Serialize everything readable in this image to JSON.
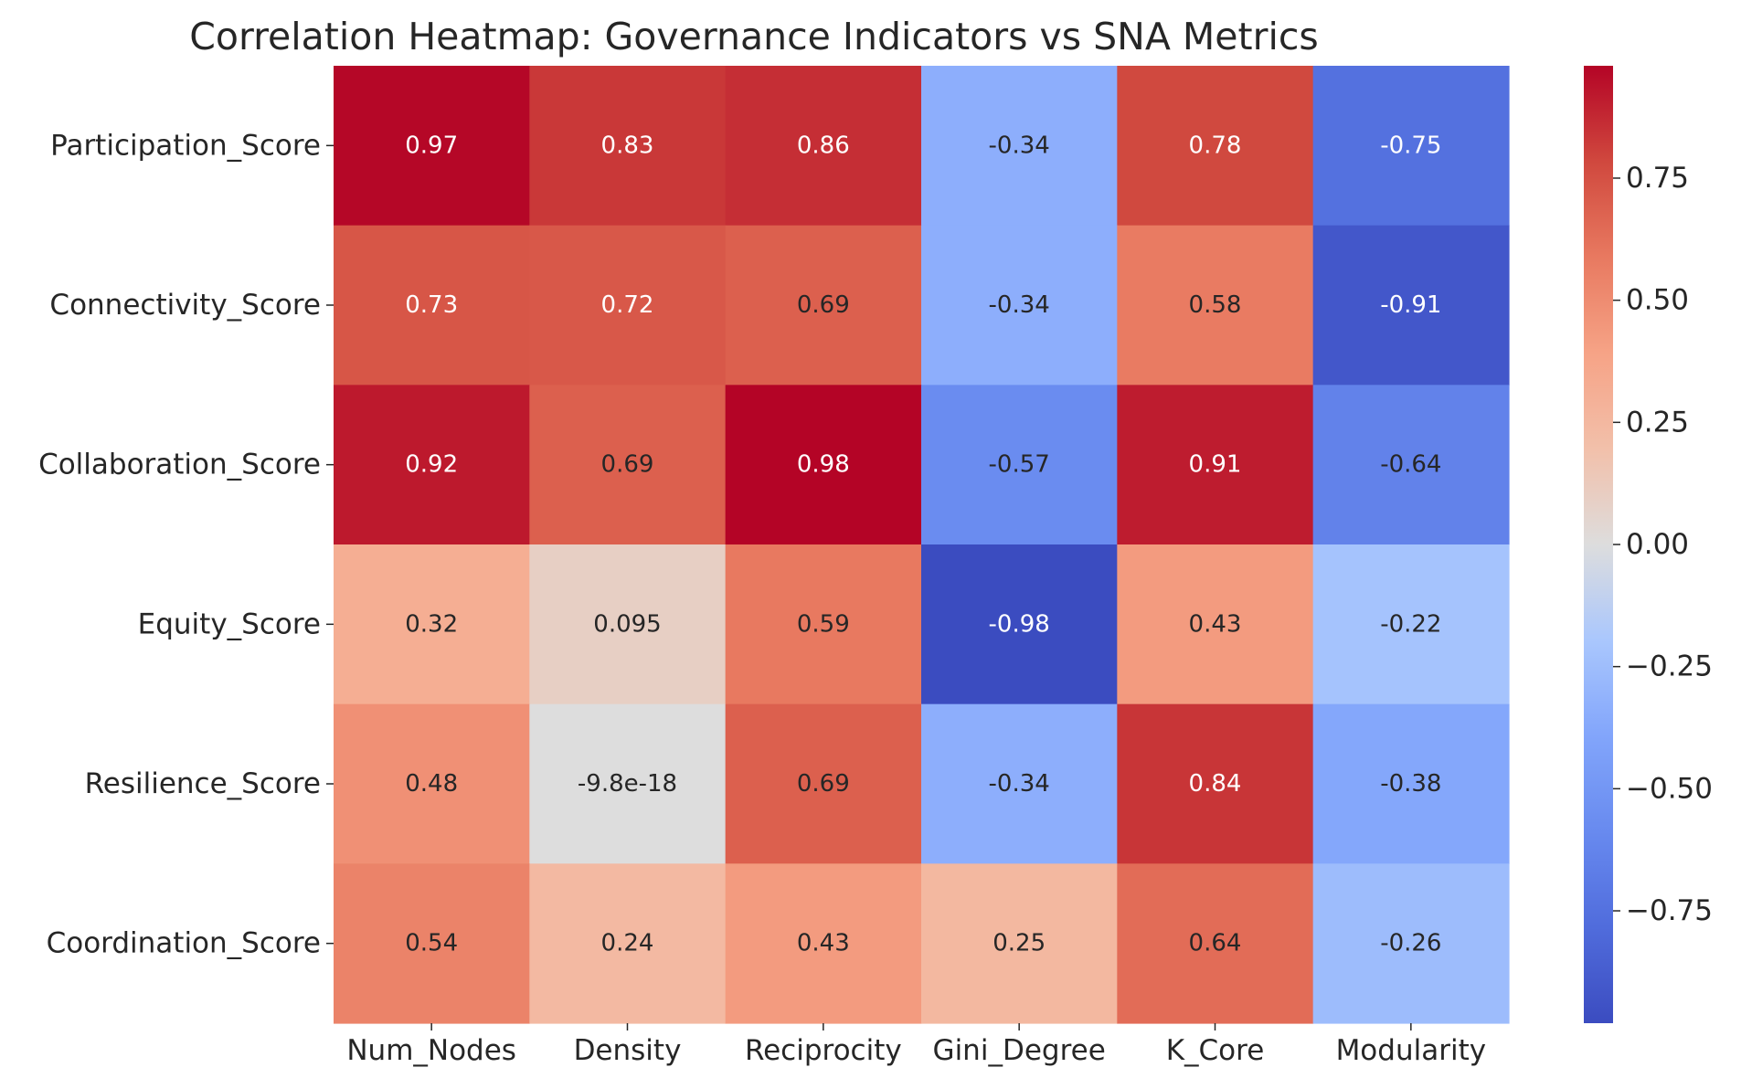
{
  "chart_data": {
    "type": "heatmap",
    "title": "Correlation Heatmap: Governance Indicators vs SNA Metrics",
    "xlabel": "",
    "ylabel": "",
    "columns": [
      "Num_Nodes",
      "Density",
      "Reciprocity",
      "Gini_Degree",
      "K_Core",
      "Modularity"
    ],
    "rows": [
      "Participation_Score",
      "Connectivity_Score",
      "Collaboration_Score",
      "Equity_Score",
      "Resilience_Score",
      "Coordination_Score"
    ],
    "values": [
      [
        0.97,
        0.83,
        0.86,
        -0.34,
        0.78,
        -0.75
      ],
      [
        0.73,
        0.72,
        0.69,
        -0.34,
        0.58,
        -0.91
      ],
      [
        0.92,
        0.69,
        0.98,
        -0.57,
        0.91,
        -0.64
      ],
      [
        0.32,
        0.095,
        0.59,
        -0.98,
        0.43,
        -0.22
      ],
      [
        0.48,
        -9.8e-18,
        0.69,
        -0.34,
        0.84,
        -0.38
      ],
      [
        0.54,
        0.24,
        0.43,
        0.25,
        0.64,
        -0.26
      ]
    ],
    "value_labels": [
      [
        "0.97",
        "0.83",
        "0.86",
        "-0.34",
        "0.78",
        "-0.75"
      ],
      [
        "0.73",
        "0.72",
        "0.69",
        "-0.34",
        "0.58",
        "-0.91"
      ],
      [
        "0.92",
        "0.69",
        "0.98",
        "-0.57",
        "0.91",
        "-0.64"
      ],
      [
        "0.32",
        "0.095",
        "0.59",
        "-0.98",
        "0.43",
        "-0.22"
      ],
      [
        "0.48",
        "-9.8e-18",
        "0.69",
        "-0.34",
        "0.84",
        "-0.38"
      ],
      [
        "0.54",
        "0.24",
        "0.43",
        "0.25",
        "0.64",
        "-0.26"
      ]
    ],
    "colorscale": "coolwarm",
    "vmin": -0.98,
    "vmax": 0.98,
    "colorbar": {
      "ticks": [
        0.75,
        0.5,
        0.25,
        0.0,
        -0.25,
        -0.5,
        -0.75
      ],
      "tick_labels": [
        "0.75",
        "0.50",
        "0.25",
        "0.00",
        "−0.25",
        "−0.50",
        "−0.75"
      ],
      "placement": "right"
    }
  }
}
